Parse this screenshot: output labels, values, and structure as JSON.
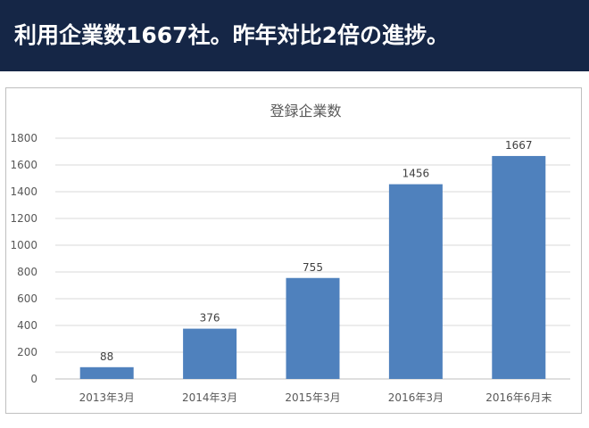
{
  "header": {
    "title": "利用企業数1667社。昨年対比2倍の進捗。",
    "background": "#152646"
  },
  "chart_data": {
    "type": "bar",
    "title": "登録企業数",
    "categories": [
      "2013年3月",
      "2014年3月",
      "2015年3月",
      "2016年3月",
      "2016年6月末"
    ],
    "values": [
      88,
      376,
      755,
      1456,
      1667
    ],
    "ylim": [
      0,
      1800
    ],
    "yticks": [
      0,
      200,
      400,
      600,
      800,
      1000,
      1200,
      1400,
      1600,
      1800
    ],
    "grid": true,
    "data_labels": true,
    "bar_color": "#4f81bd",
    "xlabel": "",
    "ylabel": ""
  }
}
